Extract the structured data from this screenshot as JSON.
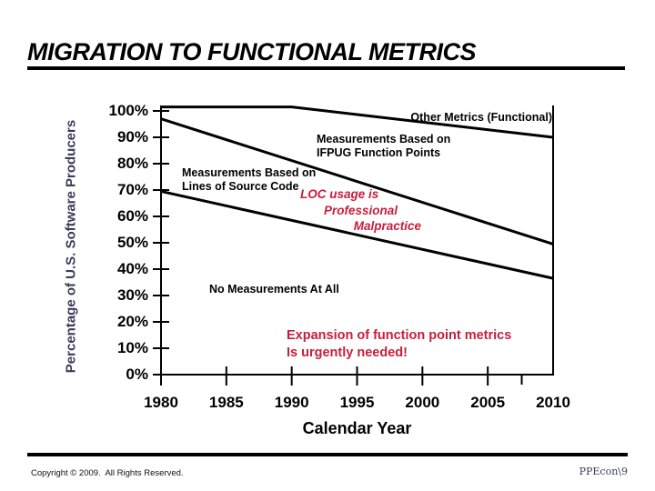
{
  "slide": {
    "title": "MIGRATION TO FUNCTIONAL METRICS",
    "footer_left": "Copyright © 2009.  All Rights Reserved.",
    "footer_right": "PPEcon\\9"
  },
  "colors": {
    "accent_red": "#C81E3C",
    "line_color": "#000000",
    "axis_title_color": "#3B3B58",
    "background": "#FFFFFF"
  },
  "chart_data": {
    "type": "line",
    "title": "",
    "xlabel": "Calendar Year",
    "ylabel": "Percentage of U.S. Software Producers",
    "xlim": [
      1980,
      2010
    ],
    "ylim": [
      0,
      100
    ],
    "grid": false,
    "legend": false,
    "x_ticks": [
      1980,
      1985,
      1990,
      1995,
      2000,
      2005,
      2010
    ],
    "x_tick_labels": [
      "1980",
      "1985",
      "1990",
      "1995",
      "2000",
      "2005",
      "2010"
    ],
    "x_minor_ticks": [
      2007.6
    ],
    "y_ticks": [
      0,
      10,
      20,
      30,
      40,
      50,
      60,
      70,
      80,
      90,
      100
    ],
    "y_tick_labels": [
      "0%",
      "10%",
      "20%",
      "30%",
      "40%",
      "50%",
      "60%",
      "70%",
      "80%",
      "90%",
      "100%"
    ],
    "series": [
      {
        "name": "other-metrics-upper-boundary",
        "points": [
          [
            1980,
            101.5
          ],
          [
            1990,
            101.5
          ],
          [
            2010,
            90
          ]
        ]
      },
      {
        "name": "ifpug-upper-boundary",
        "points": [
          [
            1980,
            97
          ],
          [
            2010,
            49.5
          ]
        ]
      },
      {
        "name": "loc-upper-boundary",
        "points": [
          [
            1980,
            69.5
          ],
          [
            2010,
            36.5
          ]
        ]
      }
    ],
    "annotations": {
      "other_metrics": "Other Metrics (Functional)",
      "ifpug": "Measurements Based on\nIFPUG Function Points",
      "loc_source": "Measurements Based on\nLines of Source Code",
      "loc_warning_lines": [
        "LOC usage is",
        "Professional",
        "Malpractice"
      ],
      "no_measurements": "No Measurements At All",
      "expansion": "Expansion of function point metrics\nIs urgently needed!"
    }
  }
}
